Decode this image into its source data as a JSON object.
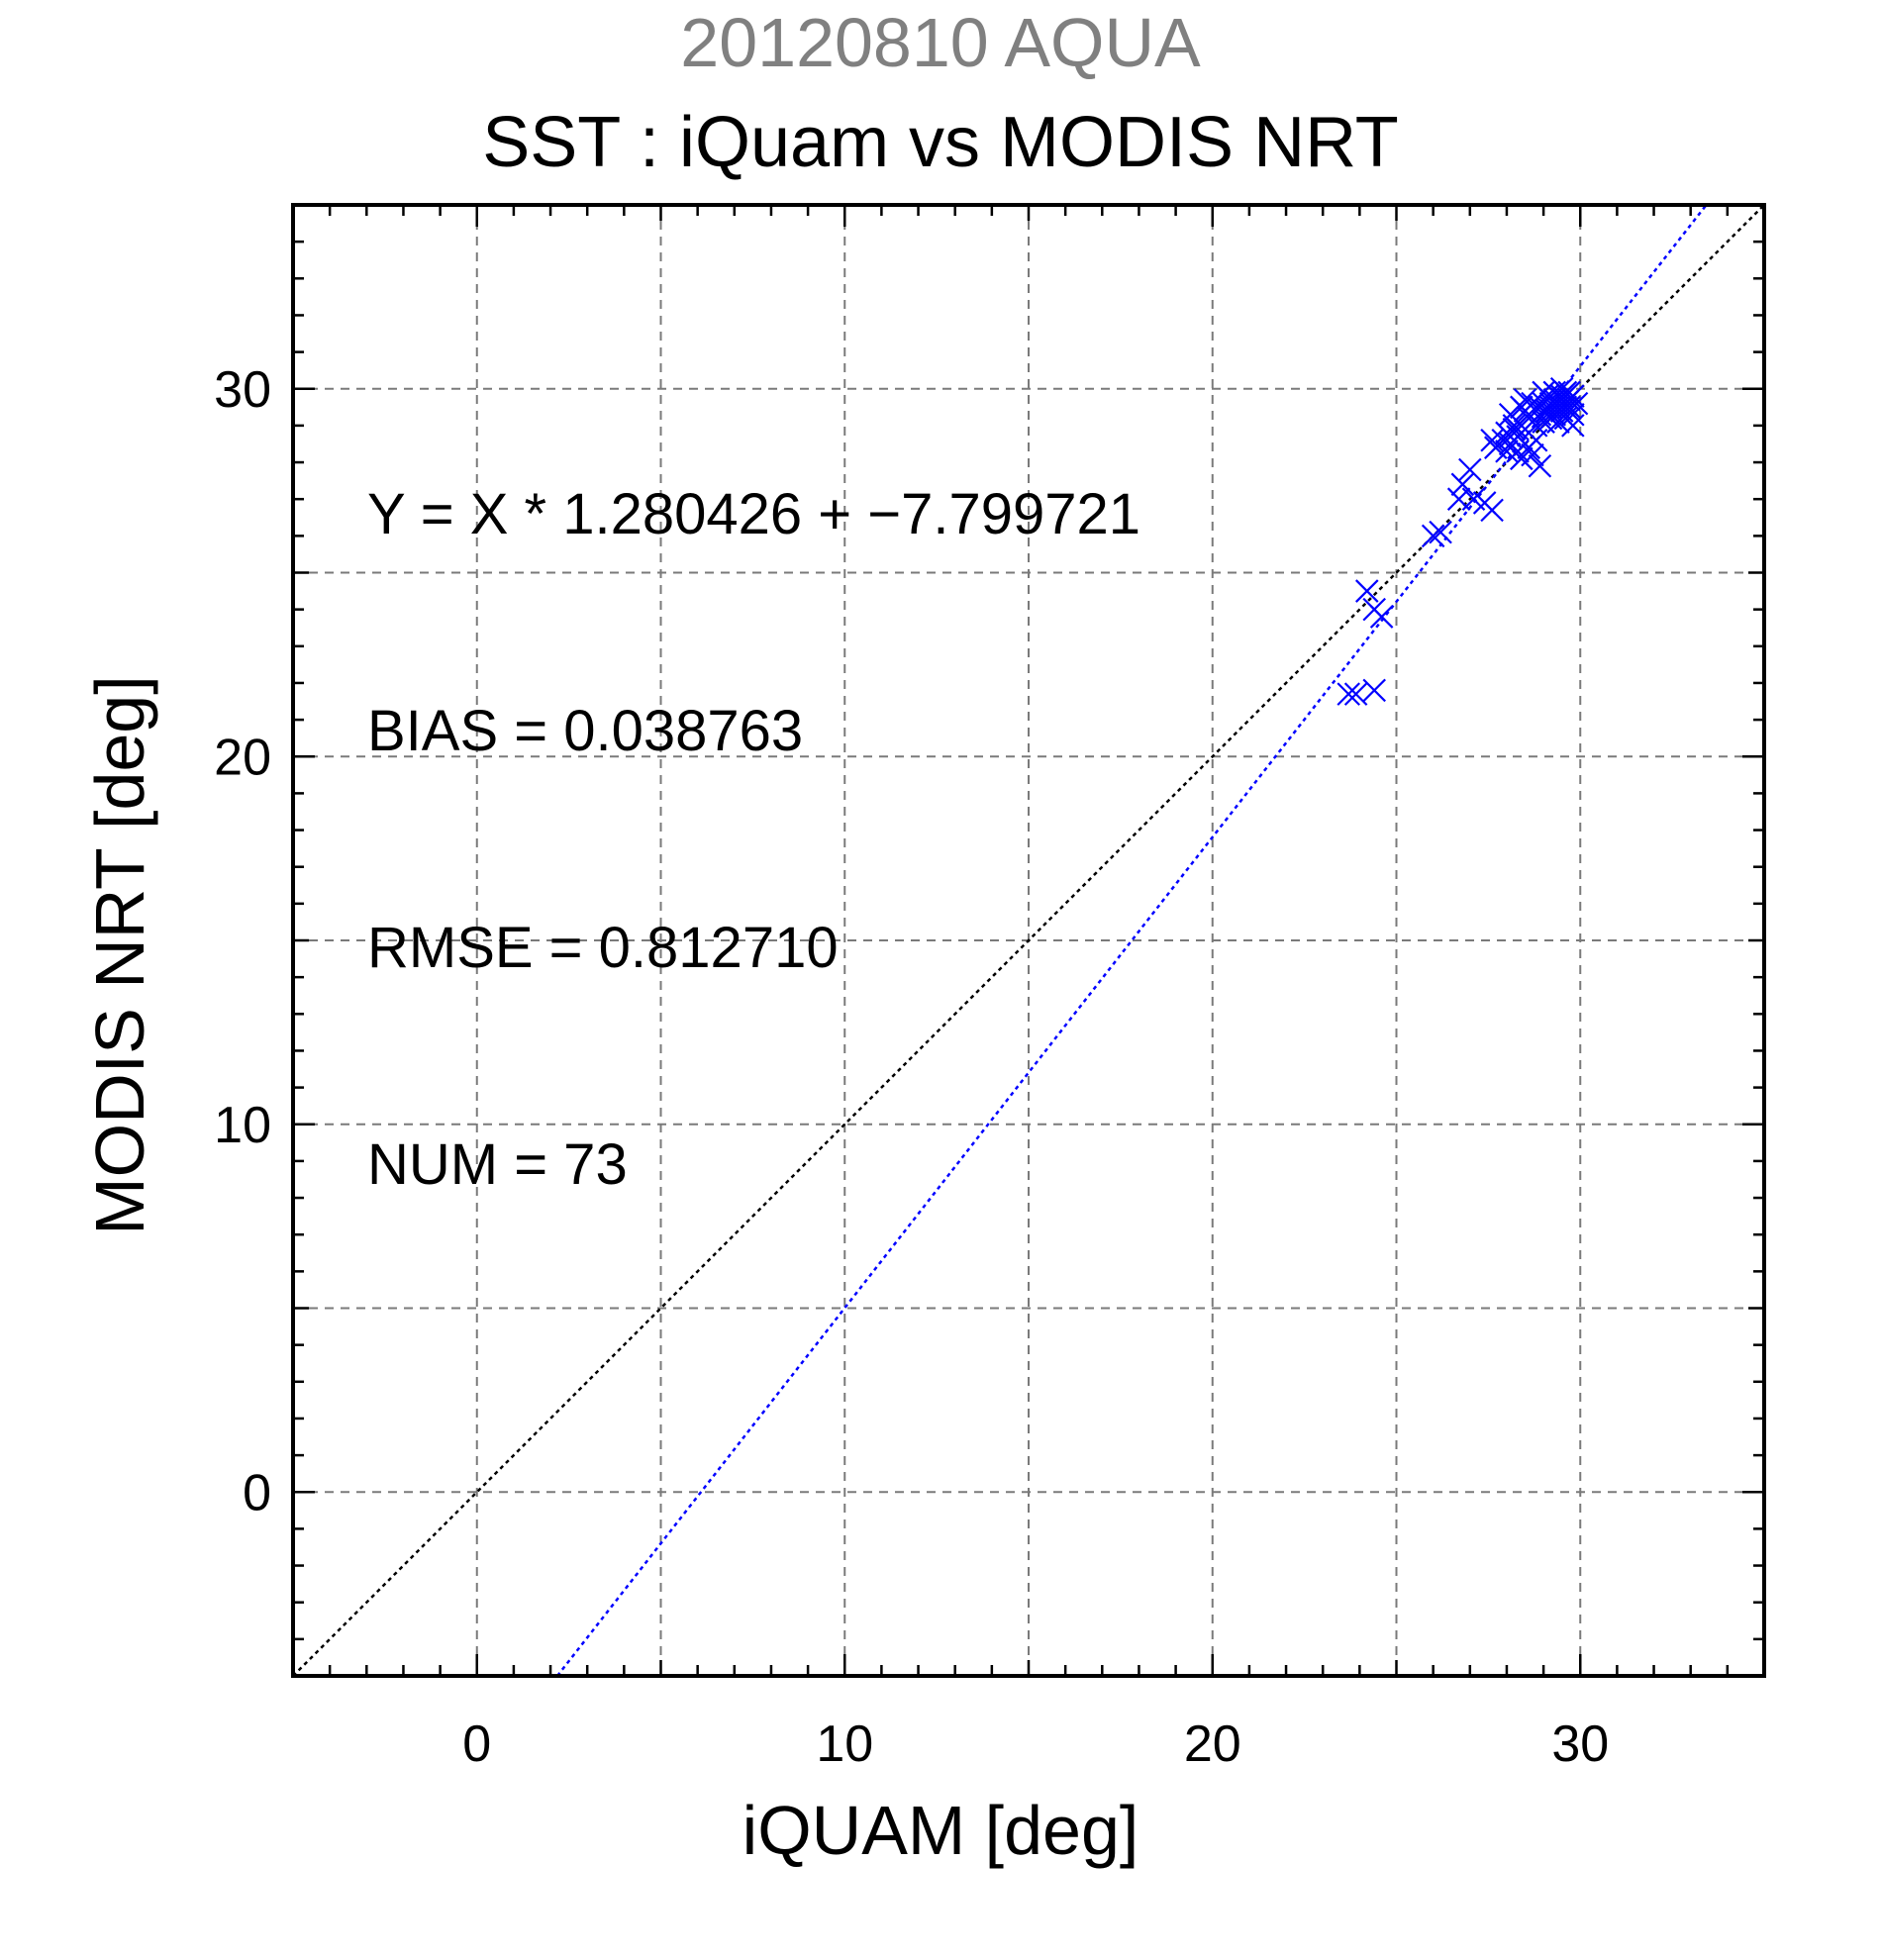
{
  "chart_data": {
    "type": "scatter",
    "title_top": "20120810 AQUA",
    "title": "SST : iQuam vs MODIS NRT",
    "xlabel": "iQUAM [deg]",
    "ylabel": "MODIS NRT [deg]",
    "xlim": [
      -5,
      35
    ],
    "ylim": [
      -5,
      35
    ],
    "x_ticks": [
      0,
      10,
      20,
      30
    ],
    "y_ticks": [
      0,
      10,
      20,
      30
    ],
    "x_tick_labels": [
      "0",
      "10",
      "20",
      "30"
    ],
    "y_tick_labels": [
      "0",
      "10",
      "20",
      "30"
    ],
    "grid": true,
    "annotations": [
      "Y = X * 1.280426 + −7.799721",
      "BIAS = 0.038763",
      "RMSE = 0.812710",
      "NUM = 73"
    ],
    "reference_line": {
      "slope": 1,
      "intercept": 0,
      "color": "#000000",
      "style": "dotted"
    },
    "regression_line": {
      "slope": 1.280426,
      "intercept": -7.799721,
      "color": "#0000ff",
      "style": "dotted"
    },
    "marker": {
      "shape": "x",
      "color": "#0000ff"
    },
    "series": [
      {
        "points": [
          [
            23.7,
            21.7
          ],
          [
            23.9,
            21.7
          ],
          [
            24.4,
            21.8
          ],
          [
            24.2,
            24.5
          ],
          [
            24.4,
            24.0
          ],
          [
            24.6,
            23.8
          ],
          [
            26.0,
            26.0
          ],
          [
            26.2,
            26.1
          ],
          [
            26.7,
            27.0
          ],
          [
            26.8,
            27.4
          ],
          [
            27.0,
            27.8
          ],
          [
            27.1,
            27.0
          ],
          [
            27.4,
            26.9
          ],
          [
            27.6,
            26.7
          ],
          [
            27.6,
            28.6
          ],
          [
            27.7,
            28.4
          ],
          [
            27.9,
            28.6
          ],
          [
            28.0,
            28.3
          ],
          [
            28.0,
            28.8
          ],
          [
            28.1,
            28.5
          ],
          [
            28.1,
            29.3
          ],
          [
            28.2,
            28.9
          ],
          [
            28.2,
            29.0
          ],
          [
            28.3,
            28.3
          ],
          [
            28.3,
            28.7
          ],
          [
            28.4,
            29.5
          ],
          [
            28.4,
            28.1
          ],
          [
            28.5,
            28.9
          ],
          [
            28.5,
            29.4
          ],
          [
            28.6,
            28.4
          ],
          [
            28.6,
            29.2
          ],
          [
            28.7,
            29.6
          ],
          [
            28.7,
            28.2
          ],
          [
            28.8,
            29.0
          ],
          [
            28.8,
            28.6
          ],
          [
            28.9,
            29.3
          ],
          [
            28.9,
            27.9
          ],
          [
            29.0,
            29.6
          ],
          [
            29.0,
            29.1
          ],
          [
            29.1,
            29.4
          ],
          [
            29.1,
            29.8
          ],
          [
            29.2,
            29.5
          ],
          [
            29.2,
            29.2
          ],
          [
            29.3,
            29.7
          ],
          [
            29.3,
            29.3
          ],
          [
            29.4,
            29.6
          ],
          [
            29.4,
            29.1
          ],
          [
            29.5,
            29.8
          ],
          [
            29.5,
            29.4
          ],
          [
            29.6,
            29.6
          ],
          [
            29.6,
            29.9
          ],
          [
            29.7,
            29.5
          ],
          [
            29.7,
            29.7
          ],
          [
            29.8,
            29.3
          ],
          [
            29.8,
            29.8
          ],
          [
            29.5,
            30.0
          ],
          [
            29.3,
            29.9
          ],
          [
            29.0,
            29.9
          ],
          [
            28.5,
            29.7
          ],
          [
            29.9,
            29.6
          ],
          [
            29.6,
            29.2
          ],
          [
            29.8,
            29.0
          ],
          [
            29.4,
            29.5
          ],
          [
            29.1,
            29.4
          ],
          [
            28.9,
            29.5
          ],
          [
            28.6,
            29.3
          ],
          [
            28.3,
            28.9
          ],
          [
            28.1,
            28.7
          ],
          [
            29.7,
            29.9
          ],
          [
            29.5,
            29.7
          ],
          [
            29.2,
            29.6
          ],
          [
            29.0,
            29.4
          ],
          [
            29.6,
            29.5
          ]
        ]
      }
    ]
  }
}
